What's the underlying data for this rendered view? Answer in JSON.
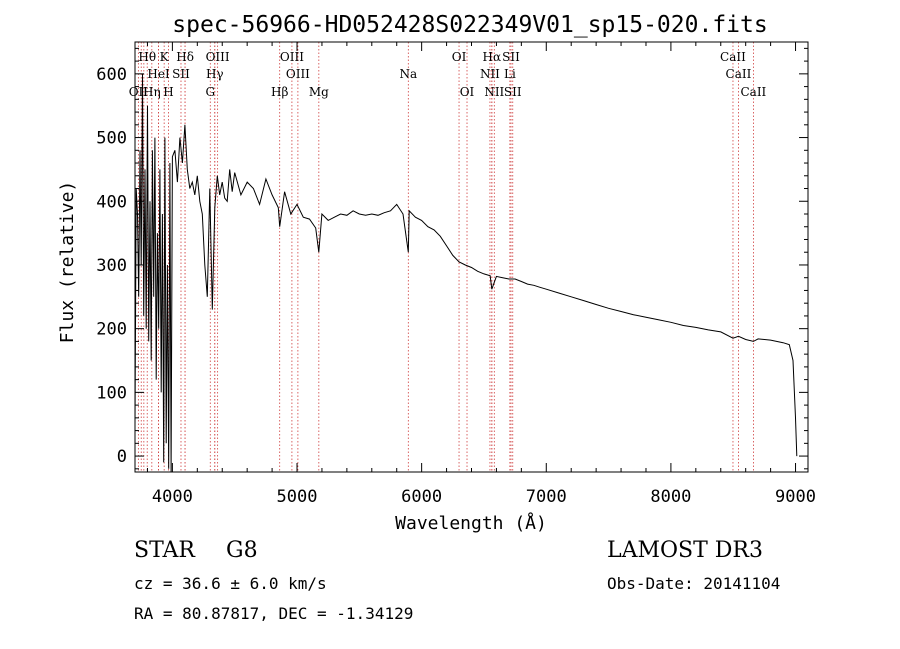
{
  "chart_data": {
    "type": "line",
    "title": "spec-56966-HD052428S022349V01_sp15-020.fits",
    "xlabel": "Wavelength (Å)",
    "ylabel": "Flux (relative)",
    "xlim": [
      3700,
      9100
    ],
    "ylim": [
      -25,
      650
    ],
    "xticks": [
      4000,
      5000,
      6000,
      7000,
      8000,
      9000
    ],
    "yticks": [
      0,
      100,
      200,
      300,
      400,
      500,
      600
    ],
    "grid": false,
    "series": [
      {
        "name": "flux",
        "x": [
          3700,
          3710,
          3720,
          3730,
          3740,
          3750,
          3760,
          3770,
          3780,
          3790,
          3800,
          3810,
          3820,
          3830,
          3840,
          3850,
          3860,
          3870,
          3880,
          3890,
          3900,
          3910,
          3920,
          3930,
          3940,
          3950,
          3960,
          3970,
          3980,
          3990,
          4000,
          4020,
          4040,
          4060,
          4080,
          4100,
          4120,
          4140,
          4160,
          4180,
          4200,
          4220,
          4240,
          4260,
          4280,
          4300,
          4320,
          4340,
          4360,
          4380,
          4400,
          4420,
          4440,
          4460,
          4480,
          4500,
          4550,
          4600,
          4650,
          4700,
          4750,
          4800,
          4850,
          4861,
          4900,
          4950,
          5000,
          5050,
          5100,
          5150,
          5175,
          5200,
          5250,
          5300,
          5350,
          5400,
          5450,
          5500,
          5550,
          5600,
          5650,
          5700,
          5750,
          5800,
          5850,
          5893,
          5900,
          5950,
          6000,
          6050,
          6100,
          6150,
          6200,
          6250,
          6300,
          6350,
          6400,
          6450,
          6500,
          6550,
          6563,
          6600,
          6650,
          6700,
          6750,
          6800,
          6850,
          6900,
          6950,
          7000,
          7100,
          7200,
          7300,
          7400,
          7500,
          7600,
          7700,
          7800,
          7900,
          8000,
          8100,
          8200,
          8300,
          8400,
          8498,
          8542,
          8600,
          8662,
          8700,
          8800,
          8900,
          8950,
          8980,
          9000,
          9010
        ],
        "values": [
          50,
          420,
          380,
          250,
          480,
          300,
          600,
          220,
          450,
          200,
          550,
          180,
          400,
          150,
          480,
          250,
          500,
          120,
          350,
          200,
          450,
          100,
          380,
          -10,
          500,
          20,
          300,
          -20,
          460,
          -30,
          470,
          480,
          430,
          500,
          460,
          520,
          450,
          420,
          430,
          410,
          440,
          400,
          380,
          300,
          250,
          420,
          230,
          390,
          440,
          410,
          430,
          405,
          400,
          450,
          415,
          445,
          410,
          430,
          420,
          395,
          435,
          410,
          390,
          360,
          415,
          380,
          395,
          375,
          372,
          358,
          320,
          380,
          370,
          375,
          380,
          378,
          385,
          380,
          378,
          380,
          378,
          382,
          385,
          395,
          380,
          320,
          385,
          375,
          370,
          360,
          355,
          345,
          330,
          315,
          305,
          300,
          296,
          290,
          286,
          283,
          262,
          282,
          280,
          278,
          278,
          274,
          270,
          268,
          265,
          262,
          256,
          250,
          244,
          238,
          232,
          227,
          222,
          218,
          214,
          210,
          205,
          202,
          198,
          195,
          185,
          188,
          183,
          180,
          184,
          182,
          178,
          175,
          150,
          60,
          0
        ]
      }
    ],
    "lines": [
      {
        "name": "Hθ",
        "x": 3798,
        "row": 0
      },
      {
        "name": "K",
        "x": 3934,
        "row": 0
      },
      {
        "name": "Hδ",
        "x": 4102,
        "row": 0
      },
      {
        "name": "OIII",
        "x": 4363,
        "row": 0
      },
      {
        "name": "OIII",
        "x": 4959,
        "row": 0
      },
      {
        "name": "OI",
        "x": 6300,
        "row": 0
      },
      {
        "name": "Hα",
        "x": 6563,
        "row": 0
      },
      {
        "name": "SII",
        "x": 6717,
        "row": 0
      },
      {
        "name": "CaII",
        "x": 8498,
        "row": 0
      },
      {
        "name": "HeI",
        "x": 3889,
        "row": 1
      },
      {
        "name": "SII",
        "x": 4069,
        "row": 1
      },
      {
        "name": "Hγ",
        "x": 4340,
        "row": 1
      },
      {
        "name": "OIII",
        "x": 5007,
        "row": 1
      },
      {
        "name": "Na",
        "x": 5893,
        "row": 1
      },
      {
        "name": "NII",
        "x": 6548,
        "row": 1
      },
      {
        "name": "Li",
        "x": 6708,
        "row": 1
      },
      {
        "name": "CaII",
        "x": 8542,
        "row": 1
      },
      {
        "name": "OII",
        "x": 3727,
        "row": 2
      },
      {
        "name": "Hη",
        "x": 3835,
        "row": 2
      },
      {
        "name": "H",
        "x": 3969,
        "row": 2
      },
      {
        "name": "G",
        "x": 4304,
        "row": 2
      },
      {
        "name": "Hβ",
        "x": 4861,
        "row": 2
      },
      {
        "name": "Mg",
        "x": 5175,
        "row": 2
      },
      {
        "name": "OI",
        "x": 6364,
        "row": 2
      },
      {
        "name": "NII",
        "x": 6583,
        "row": 2
      },
      {
        "name": "SII",
        "x": 6731,
        "row": 2
      },
      {
        "name": "CaII",
        "x": 8662,
        "row": 2
      }
    ],
    "extra_lines_x": [
      3750,
      3771,
      3889,
      4102,
      4340,
      6563
    ]
  },
  "info": {
    "class_label": "STAR",
    "subclass": "G8",
    "survey": "LAMOST DR3",
    "cz": "cz = 36.6 ± 6.0 km/s",
    "obs_date": "Obs-Date: 20141104",
    "radec": "RA =  80.87817, DEC =  -1.34129"
  },
  "colors": {
    "line_marker": "#d04040",
    "spectrum": "#000000"
  }
}
